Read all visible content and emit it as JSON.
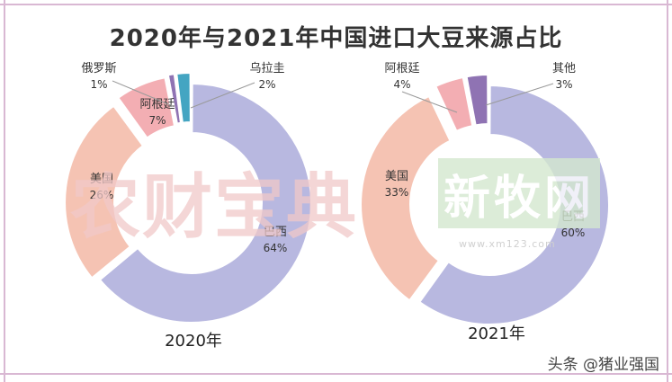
{
  "title": "2020年与2021年中国进口大豆来源占比",
  "watermark_left": "农财宝典",
  "watermark_right": "新牧网",
  "watermark_url": "www.xm123.com",
  "credit": "头条 @猪业强国",
  "chart_data": [
    {
      "type": "pie",
      "variant": "donut",
      "year_label": "2020年",
      "slices": [
        {
          "label": "巴西",
          "pct_label": "64%",
          "value": 64,
          "color": "#b8b8e0"
        },
        {
          "label": "美国",
          "pct_label": "26%",
          "value": 26,
          "color": "#f5c3b3"
        },
        {
          "label": "阿根廷",
          "pct_label": "7%",
          "value": 7,
          "color": "#f3aeb3"
        },
        {
          "label": "俄罗斯",
          "pct_label": "1%",
          "value": 1,
          "color": "#8f73b3"
        },
        {
          "label": "乌拉圭",
          "pct_label": "2%",
          "value": 2,
          "color": "#44a5c2"
        }
      ]
    },
    {
      "type": "pie",
      "variant": "donut",
      "year_label": "2021年",
      "slices": [
        {
          "label": "巴西",
          "pct_label": "60%",
          "value": 60,
          "color": "#b8b8e0"
        },
        {
          "label": "美国",
          "pct_label": "33%",
          "value": 33,
          "color": "#f5c3b3"
        },
        {
          "label": "阿根廷",
          "pct_label": "4%",
          "value": 4,
          "color": "#f3aeb3"
        },
        {
          "label": "其他",
          "pct_label": "3%",
          "value": 3,
          "color": "#8f73b3"
        }
      ]
    }
  ]
}
